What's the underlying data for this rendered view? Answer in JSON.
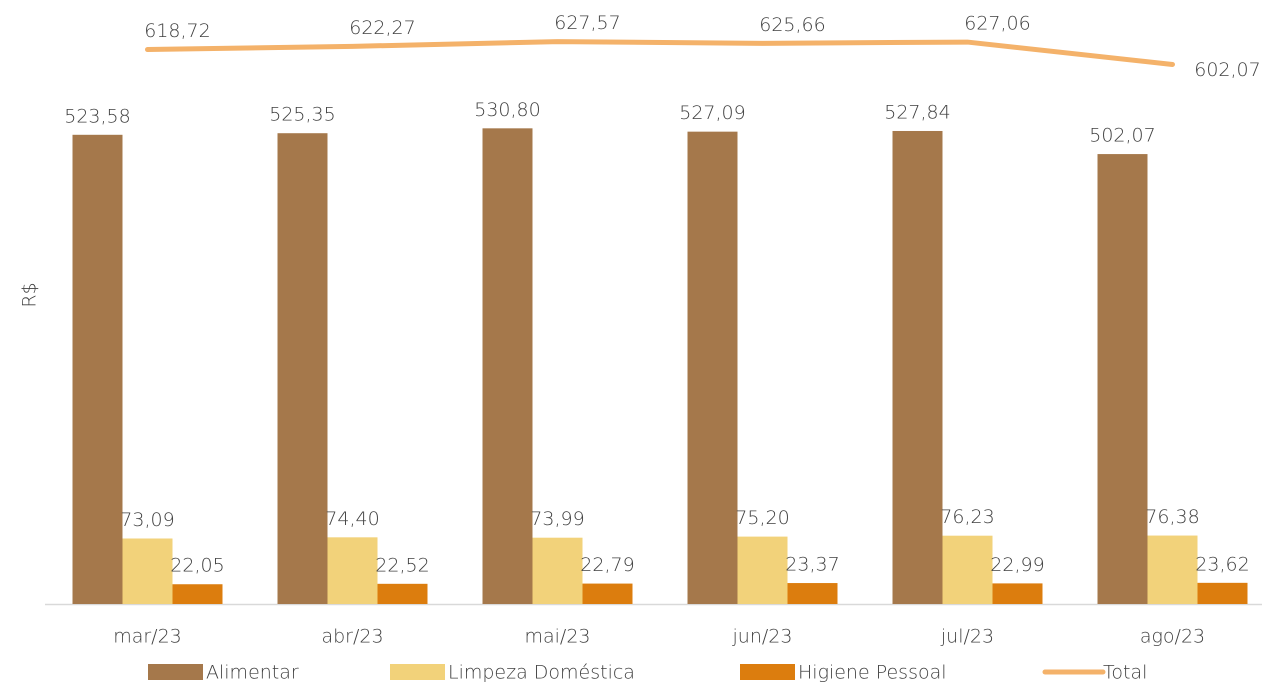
{
  "chart_data": {
    "type": "bar_line",
    "y_axis_label": "R$",
    "categories": [
      "mar/23",
      "abr/23",
      "mai/23",
      "jun/23",
      "jul/23",
      "ago/23"
    ],
    "ylim": [
      0,
      674
    ],
    "series": [
      {
        "name": "Alimentar",
        "type": "bar",
        "color": "#a5784b",
        "values": [
          523.58,
          525.35,
          530.8,
          527.09,
          527.84,
          502.07
        ],
        "value_labels": [
          "523,58",
          "525,35",
          "530,80",
          "527,09",
          "527,84",
          "502,07"
        ]
      },
      {
        "name": "Limpeza Doméstica",
        "type": "bar",
        "color": "#f2d27a",
        "values": [
          73.09,
          74.4,
          73.99,
          75.2,
          76.23,
          76.38
        ],
        "value_labels": [
          "73,09",
          "74,40",
          "73,99",
          "75,20",
          "76,23",
          "76,38"
        ]
      },
      {
        "name": "Higiene Pessoal",
        "type": "bar",
        "color": "#dc7d0e",
        "values": [
          22.05,
          22.52,
          22.79,
          23.37,
          22.99,
          23.62
        ],
        "value_labels": [
          "22,05",
          "22,52",
          "22,79",
          "23,37",
          "22,99",
          "23,62"
        ]
      },
      {
        "name": "Total",
        "type": "line",
        "color": "#f4b26a",
        "values": [
          618.72,
          622.27,
          627.57,
          625.66,
          627.06,
          602.07
        ],
        "value_labels": [
          "618,72",
          "622,27",
          "627,57",
          "625,66",
          "627,06",
          "602,07"
        ]
      }
    ]
  }
}
